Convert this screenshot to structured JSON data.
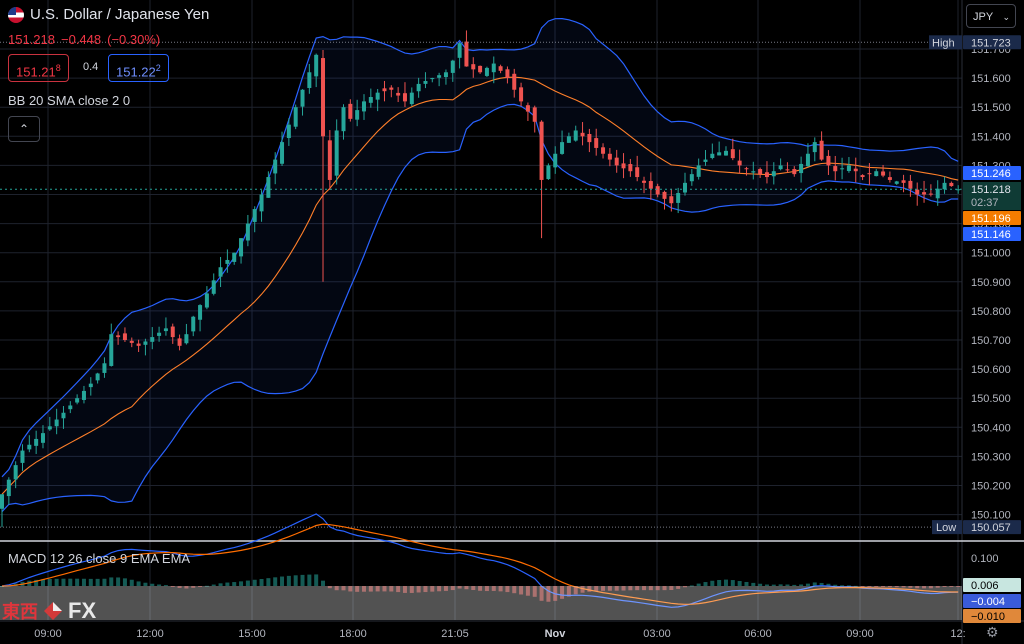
{
  "header": {
    "title": "U.S. Dollar / Japanese Yen",
    "last": "151.218",
    "change": "−0.448",
    "change_pct": "(−0.30%)",
    "bid_main": "151.21",
    "bid_sup": "8",
    "spread": "0.4",
    "ask_main": "151.22",
    "ask_sup": "2"
  },
  "indicator_label": "BB 20 SMA close 2 0",
  "collapse_icon": "chevron-up-icon",
  "currency_button": "JPY",
  "macd_label": "MACD 12 26 close 9 EMA EMA",
  "logo": {
    "kanji": "東西",
    "fx": "FX"
  },
  "colors": {
    "up": "#26a69a",
    "down": "#ef5350",
    "band": "#2962ff",
    "basis": "#ff7f2a",
    "macd": "#2962ff",
    "signal": "#ff6d00"
  },
  "chart_data": {
    "type": "candlestick",
    "price_axis": {
      "ticks": [
        "151.700",
        "151.600",
        "151.500",
        "151.400",
        "151.300",
        "151.100",
        "151.000",
        "150.900",
        "150.800",
        "150.700",
        "150.600",
        "150.500",
        "150.400",
        "150.300",
        "150.200",
        "150.100"
      ],
      "range": [
        150.06,
        151.77
      ]
    },
    "time_axis": {
      "ticks": [
        "09:00",
        "12:00",
        "15:00",
        "18:00",
        "21:05",
        "Nov",
        "03:00",
        "06:00",
        "09:00",
        "12:"
      ]
    },
    "price_labels": {
      "high_label": "High",
      "high": "151.723",
      "low_label": "Low",
      "low": "150.057",
      "upper_band": "151.246",
      "last": "151.218",
      "countdown": "02:37",
      "basis": "151.196",
      "lower_band": "151.146"
    },
    "macd_axis": {
      "ticks": [
        "0.100"
      ]
    },
    "macd_labels": {
      "hist": "0.006",
      "macd": "−0.004",
      "signal": "−0.010"
    },
    "close_path": [
      [
        0,
        150.17
      ],
      [
        3,
        150.32
      ],
      [
        6,
        150.38
      ],
      [
        9,
        150.45
      ],
      [
        11,
        150.5
      ],
      [
        13,
        150.55
      ],
      [
        15,
        150.62
      ],
      [
        16,
        150.72
      ],
      [
        18,
        150.7
      ],
      [
        20,
        150.68
      ],
      [
        22,
        150.71
      ],
      [
        24,
        150.74
      ],
      [
        26,
        150.68
      ],
      [
        27,
        150.72
      ],
      [
        28,
        150.78
      ],
      [
        30,
        150.86
      ],
      [
        32,
        150.95
      ],
      [
        34,
        151.0
      ],
      [
        36,
        151.1
      ],
      [
        38,
        151.2
      ],
      [
        40,
        151.32
      ],
      [
        42,
        151.44
      ],
      [
        44,
        151.56
      ],
      [
        45,
        151.62
      ],
      [
        46,
        151.68
      ],
      [
        47,
        151.4
      ],
      [
        48,
        151.25
      ],
      [
        49,
        151.42
      ],
      [
        50,
        151.5
      ],
      [
        51,
        151.46
      ],
      [
        53,
        151.52
      ],
      [
        55,
        151.55
      ],
      [
        57,
        151.56
      ],
      [
        59,
        151.52
      ],
      [
        61,
        151.58
      ],
      [
        63,
        151.6
      ],
      [
        65,
        151.62
      ],
      [
        66,
        151.66
      ],
      [
        67,
        151.72
      ],
      [
        68,
        151.64
      ],
      [
        70,
        151.62
      ],
      [
        72,
        151.65
      ],
      [
        74,
        151.6
      ],
      [
        76,
        151.52
      ],
      [
        78,
        151.45
      ],
      [
        79,
        151.25
      ],
      [
        80,
        151.3
      ],
      [
        82,
        151.38
      ],
      [
        84,
        151.42
      ],
      [
        85,
        151.4
      ],
      [
        86,
        151.38
      ],
      [
        88,
        151.34
      ],
      [
        90,
        151.3
      ],
      [
        92,
        151.28
      ],
      [
        94,
        151.24
      ],
      [
        96,
        151.2
      ],
      [
        98,
        151.17
      ],
      [
        100,
        151.24
      ],
      [
        102,
        151.3
      ],
      [
        104,
        151.34
      ],
      [
        106,
        151.35
      ],
      [
        108,
        151.3
      ],
      [
        110,
        151.28
      ],
      [
        112,
        151.26
      ],
      [
        114,
        151.3
      ],
      [
        116,
        151.27
      ],
      [
        118,
        151.34
      ],
      [
        119,
        151.38
      ],
      [
        120,
        151.32
      ],
      [
        122,
        151.28
      ],
      [
        124,
        151.3
      ],
      [
        126,
        151.26
      ],
      [
        128,
        151.28
      ],
      [
        130,
        151.25
      ],
      [
        132,
        151.24
      ],
      [
        134,
        151.2
      ],
      [
        136,
        151.2
      ],
      [
        138,
        151.24
      ],
      [
        140,
        151.218
      ]
    ]
  }
}
